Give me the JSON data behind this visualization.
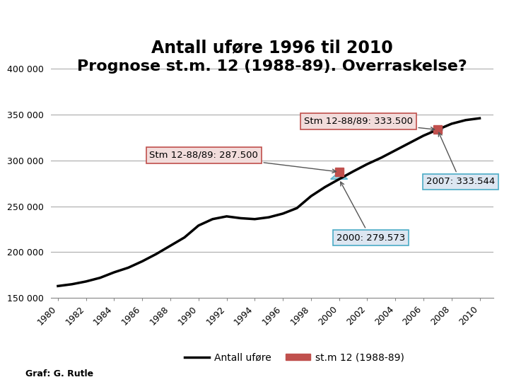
{
  "title_line1": "Antall uføre 1996 til 2010",
  "title_line2": "Prognose st.m. 12 (1988-89). Overraskelse?",
  "title_fontsize": 17,
  "ylim": [
    150000,
    400000
  ],
  "yticks": [
    150000,
    200000,
    250000,
    300000,
    350000,
    400000
  ],
  "xticks": [
    1980,
    1982,
    1984,
    1986,
    1988,
    1990,
    1992,
    1994,
    1996,
    1998,
    2000,
    2002,
    2004,
    2006,
    2008,
    2010
  ],
  "actual_years": [
    1980,
    1981,
    1982,
    1983,
    1984,
    1985,
    1986,
    1987,
    1988,
    1989,
    1990,
    1991,
    1992,
    1993,
    1994,
    1995,
    1996,
    1997,
    1998,
    1999,
    2000,
    2001,
    2002,
    2003,
    2004,
    2005,
    2006,
    2007,
    2008,
    2009,
    2010
  ],
  "actual_values": [
    163000,
    165000,
    168000,
    172000,
    178000,
    183000,
    190000,
    198000,
    207000,
    216000,
    229000,
    236000,
    239000,
    237000,
    236000,
    238000,
    242000,
    248000,
    261000,
    271000,
    279573,
    288000,
    296000,
    303000,
    311000,
    319000,
    327000,
    333544,
    340000,
    344000,
    346000
  ],
  "stm_year_1": 2000,
  "stm_val_1": 287500,
  "stm_label_1": "Stm 12-88/89: 287.500",
  "stm_year_2": 2007,
  "stm_val_2": 333500,
  "stm_label_2": "Stm 12-88/89: 333.500",
  "act_2000": 279573,
  "act_2007": 333544,
  "ann_label_2000": "2000: 279.573",
  "ann_label_2007": "2007: 333.544",
  "line_color": "#000000",
  "line_width": 2.5,
  "stm_marker_color": "#c0504d",
  "arrow_fill_color": "#92CDDC",
  "arrow_edge_color": "#4BACC6",
  "box_fill_pink": "#F2DCDB",
  "box_fill_blue": "#DCE6F1",
  "box_edge_pink": "#C0504D",
  "box_edge_blue": "#4BACC6",
  "background_color": "#ffffff",
  "legend_line_label": "Antall uføre",
  "legend_stm_label": "st.m 12 (1988-89)",
  "footer_text": "Graf: G. Rutle"
}
